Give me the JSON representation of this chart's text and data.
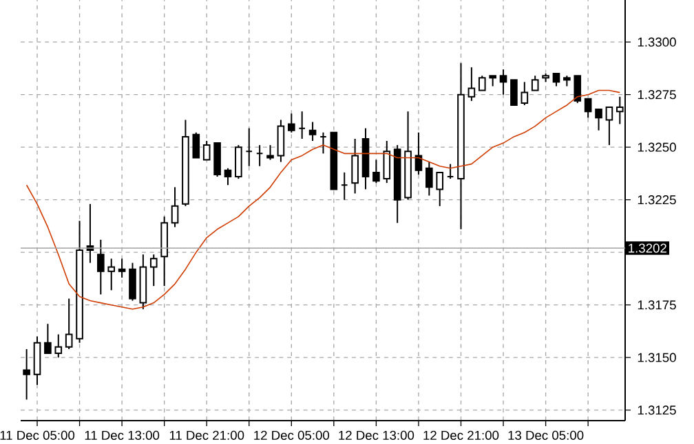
{
  "chart_data": {
    "type": "candlestick",
    "color": "#000000",
    "categories": [
      null,
      "11 Dec 05:00",
      null,
      null,
      null,
      null,
      null,
      null,
      null,
      "11 Dec 13:00",
      null,
      null,
      null,
      null,
      null,
      null,
      null,
      "11 Dec 21:00",
      null,
      null,
      null,
      null,
      null,
      null,
      null,
      "12 Dec 05:00",
      null,
      null,
      null,
      null,
      null,
      null,
      null,
      "12 Dec 13:00",
      null,
      null,
      null,
      null,
      null,
      null,
      null,
      "12 Dec 21:00",
      null,
      null,
      null,
      null,
      null,
      null,
      null,
      "13 Dec 05:00",
      null,
      null,
      null,
      null,
      null,
      null,
      null
    ],
    "ohlc": [
      [
        1.3144,
        1.3154,
        1.313,
        1.3142
      ],
      [
        1.3142,
        1.316,
        1.3137,
        1.3157
      ],
      [
        1.3157,
        1.3166,
        1.3152,
        1.3152
      ],
      [
        1.3152,
        1.3161,
        1.315,
        1.3155
      ],
      [
        1.3155,
        1.3178,
        1.3154,
        1.3161
      ],
      [
        1.3159,
        1.3215,
        1.3157,
        1.3201
      ],
      [
        1.3203,
        1.3223,
        1.3195,
        1.3201
      ],
      [
        1.3199,
        1.3206,
        1.318,
        1.3191
      ],
      [
        1.3191,
        1.3197,
        1.3182,
        1.3193
      ],
      [
        1.3192,
        1.3197,
        1.3188,
        1.3191
      ],
      [
        1.3192,
        1.3195,
        1.3177,
        1.3178
      ],
      [
        1.3176,
        1.3199,
        1.3173,
        1.3193
      ],
      [
        1.3193,
        1.3199,
        1.3184,
        1.3197
      ],
      [
        1.3198,
        1.3217,
        1.3184,
        1.3214
      ],
      [
        1.3214,
        1.3231,
        1.3212,
        1.3222
      ],
      [
        1.3223,
        1.3263,
        1.3222,
        1.3255
      ],
      [
        1.3256,
        1.3257,
        1.3245,
        1.3245
      ],
      [
        1.3244,
        1.3253,
        1.3244,
        1.3251
      ],
      [
        1.3252,
        1.3252,
        1.3236,
        1.3237
      ],
      [
        1.3239,
        1.324,
        1.3232,
        1.3236
      ],
      [
        1.3236,
        1.3251,
        1.3235,
        1.325
      ],
      [
        1.3248,
        1.3259,
        1.3241,
        1.3248
      ],
      [
        1.3247,
        1.3251,
        1.3241,
        1.3247
      ],
      [
        1.3246,
        1.3251,
        1.3244,
        1.3245
      ],
      [
        1.3246,
        1.3263,
        1.3243,
        1.326
      ],
      [
        1.3261,
        1.3266,
        1.3257,
        1.3258
      ],
      [
        1.3259,
        1.3267,
        1.3254,
        1.3259
      ],
      [
        1.3258,
        1.3262,
        1.3253,
        1.3256
      ],
      [
        1.3255,
        1.3257,
        1.3247,
        1.3255
      ],
      [
        1.3257,
        1.3257,
        1.323,
        1.323
      ],
      [
        1.3232,
        1.3238,
        1.3225,
        1.3232
      ],
      [
        1.3233,
        1.3254,
        1.3228,
        1.3246
      ],
      [
        1.3254,
        1.3259,
        1.323,
        1.3236
      ],
      [
        1.3238,
        1.3244,
        1.3233,
        1.3234
      ],
      [
        1.3235,
        1.3253,
        1.3233,
        1.3248
      ],
      [
        1.3249,
        1.3251,
        1.3214,
        1.3225
      ],
      [
        1.3226,
        1.3267,
        1.3225,
        1.3248
      ],
      [
        1.3246,
        1.3257,
        1.3237,
        1.3239
      ],
      [
        1.324,
        1.3243,
        1.3227,
        1.3231
      ],
      [
        1.323,
        1.3238,
        1.3222,
        1.3238
      ],
      [
        1.3236,
        1.3242,
        1.3235,
        1.3236
      ],
      [
        1.3235,
        1.329,
        1.3211,
        1.3275
      ],
      [
        1.3274,
        1.3288,
        1.3272,
        1.3278
      ],
      [
        1.3277,
        1.3284,
        1.3277,
        1.3283
      ],
      [
        1.3284,
        1.3284,
        1.3279,
        1.3283
      ],
      [
        1.3284,
        1.3287,
        1.3275,
        1.3281
      ],
      [
        1.3282,
        1.3282,
        1.327,
        1.327
      ],
      [
        1.3271,
        1.3281,
        1.327,
        1.3276
      ],
      [
        1.3277,
        1.3284,
        1.3277,
        1.3282
      ],
      [
        1.3283,
        1.3285,
        1.3281,
        1.3284
      ],
      [
        1.3285,
        1.3285,
        1.3279,
        1.3281
      ],
      [
        1.3283,
        1.3284,
        1.3279,
        1.3282
      ],
      [
        1.3284,
        1.3284,
        1.3271,
        1.3272
      ],
      [
        1.3273,
        1.3273,
        1.3264,
        1.3267
      ],
      [
        1.3268,
        1.3268,
        1.3258,
        1.3264
      ],
      [
        1.3263,
        1.3269,
        1.3251,
        1.3269
      ],
      [
        1.3267,
        1.3274,
        1.3261,
        1.3269
      ]
    ],
    "series": [
      {
        "type": "line",
        "color": "#d03c00",
        "values": [
          1.3232,
          1.3223,
          1.3212,
          1.3199,
          1.3185,
          1.3179,
          1.3177,
          1.3176,
          1.3175,
          1.3174,
          1.3173,
          1.3174,
          1.3176,
          1.318,
          1.3185,
          1.3192,
          1.32,
          1.3207,
          1.3211,
          1.3214,
          1.3217,
          1.3222,
          1.3226,
          1.3231,
          1.3238,
          1.3244,
          1.3246,
          1.3249,
          1.3251,
          1.3249,
          1.3247,
          1.3247,
          1.3247,
          1.3247,
          1.3247,
          1.3245,
          1.3245,
          1.3245,
          1.3243,
          1.3241,
          1.324,
          1.3241,
          1.3242,
          1.3246,
          1.325,
          1.3252,
          1.3255,
          1.3257,
          1.326,
          1.3264,
          1.3267,
          1.327,
          1.3274,
          1.3275,
          1.3277,
          1.3277,
          1.3276
        ]
      }
    ],
    "ylim": [
      1.312,
      1.332
    ],
    "yticks": [
      1.3125,
      {
        "value": 1.315,
        "label": "1.3150"
      },
      1.3175,
      {
        "value": 1.32,
        "label": null
      },
      1.3225,
      {
        "value": 1.325,
        "label": "1.3250"
      },
      1.3275,
      {
        "value": 1.33,
        "label": "1.3300"
      }
    ],
    "grid": true,
    "ref_lines": [
      {
        "axis": "y",
        "value": 1.3202,
        "label": "1.3202",
        "color": "#a0a0a0"
      }
    ]
  }
}
